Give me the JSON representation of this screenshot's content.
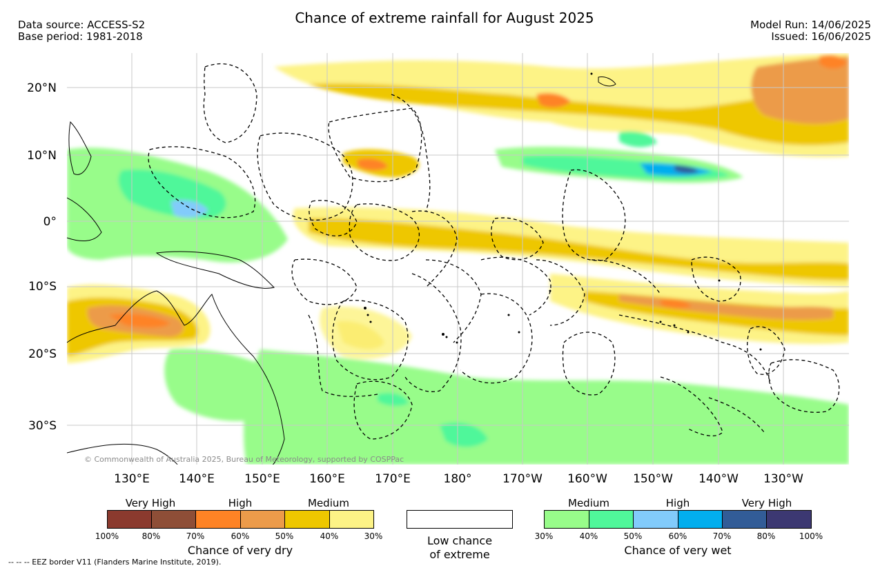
{
  "header": {
    "title": "Chance of extreme rainfall for August 2025",
    "data_source": "Data source: ACCESS-S2",
    "base_period": "Base period: 1981-2018",
    "model_run": "Model Run: 14/06/2025",
    "issued": "Issued: 16/06/2025"
  },
  "map": {
    "lat_labels": [
      "20°N",
      "10°N",
      "0°",
      "10°S",
      "20°S",
      "30°S"
    ],
    "lon_labels": [
      "130°E",
      "140°E",
      "150°E",
      "160°E",
      "170°E",
      "180°",
      "170°W",
      "160°W",
      "150°W",
      "140°W",
      "130°W"
    ],
    "copyright": "© Commonwealth of Australia 2025, Bureau of Meteorology, supported by COSPPac"
  },
  "legend": {
    "dry": {
      "category_labels": [
        "Very High",
        "High",
        "Medium"
      ],
      "percent_labels": [
        "100%",
        "80%",
        "70%",
        "60%",
        "50%",
        "40%",
        "30%"
      ],
      "colors": [
        "#8b3a2e",
        "#8e4e37",
        "#fe8325",
        "#ec9b4a",
        "#eec700",
        "#fdf386"
      ],
      "caption": "Chance of very dry"
    },
    "low": {
      "line1": "Low chance",
      "line2": "of extreme"
    },
    "wet": {
      "category_labels": [
        "Medium",
        "High",
        "Very High"
      ],
      "percent_labels": [
        "30%",
        "40%",
        "50%",
        "60%",
        "70%",
        "80%",
        "100%"
      ],
      "colors": [
        "#98fc8a",
        "#50f79a",
        "#82cbfb",
        "#02aeee",
        "#325c97",
        "#3c3872"
      ],
      "caption": "Chance of very wet"
    }
  },
  "footnote": "--  --  -- EEZ border V11 (Flanders Marine Institute, 2019)."
}
